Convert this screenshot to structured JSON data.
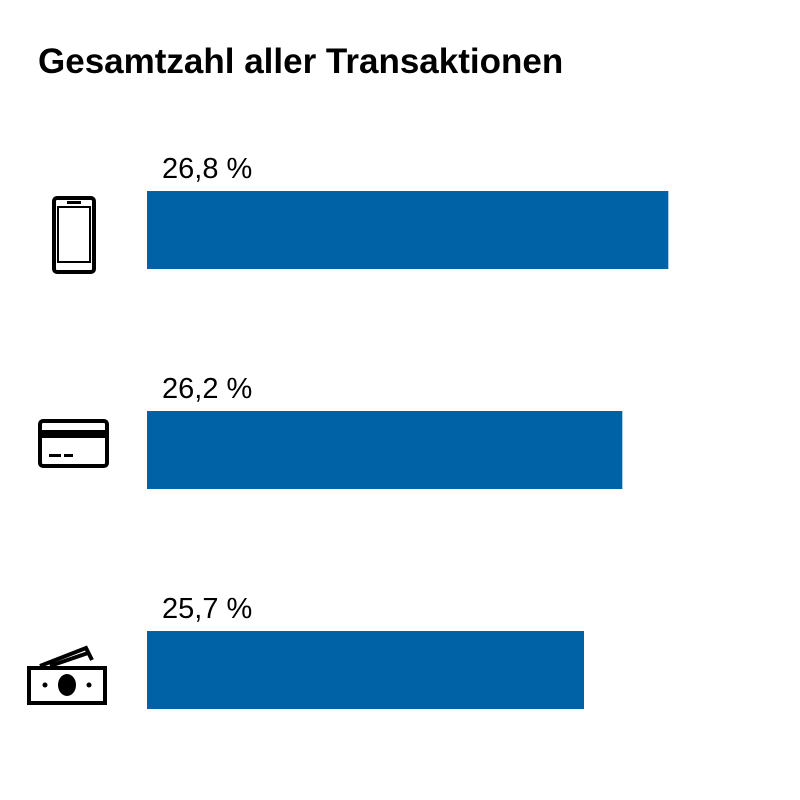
{
  "chart_data": {
    "type": "bar",
    "orientation": "horizontal",
    "title": "Gesamtzahl aller Transaktionen",
    "values": [
      26.8,
      26.2,
      25.7
    ],
    "value_labels": [
      "26,8 %",
      "26,2 %",
      "25,7 %"
    ],
    "color": "#0062a6",
    "xlim": [
      20,
      27.5
    ]
  }
}
